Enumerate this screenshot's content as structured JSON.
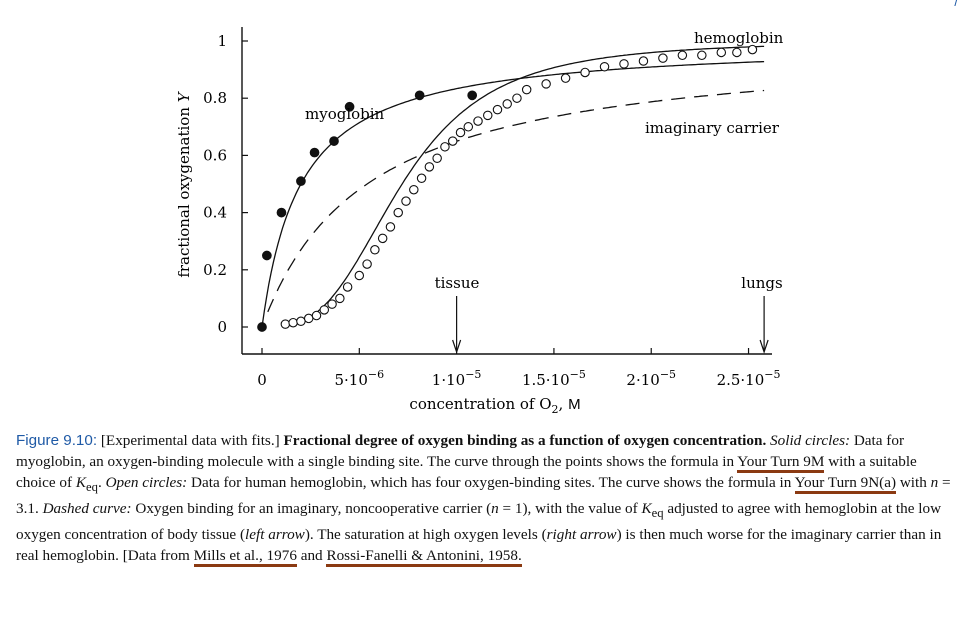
{
  "chart_data": {
    "type": "scatter",
    "xlabel_prefix": "concentration of O",
    "xlabel_sub": "2",
    "xlabel_unit": "M",
    "ylabel": "fractional oxygenation",
    "ylabel_var": "Y",
    "xlim": [
      0,
      2.6e-05
    ],
    "ylim": [
      -0.1,
      1.05
    ],
    "x_ticks": [
      {
        "value": 0,
        "mant": "0",
        "exp": ""
      },
      {
        "value": 5e-06,
        "mant": "5·10",
        "exp": "−6"
      },
      {
        "value": 1e-05,
        "mant": "1·10",
        "exp": "−5"
      },
      {
        "value": 1.5e-05,
        "mant": "1.5·10",
        "exp": "−5"
      },
      {
        "value": 2e-05,
        "mant": "2·10",
        "exp": "−5"
      },
      {
        "value": 2.5e-05,
        "mant": "2.5·10",
        "exp": "−5"
      }
    ],
    "y_ticks": [
      {
        "value": 0,
        "label": "0"
      },
      {
        "value": 0.2,
        "label": "0.2"
      },
      {
        "value": 0.4,
        "label": "0.4"
      },
      {
        "value": 0.6,
        "label": "0.6"
      },
      {
        "value": 0.8,
        "label": "0.8"
      },
      {
        "value": 1,
        "label": "1"
      }
    ],
    "series": [
      {
        "name": "myoglobin",
        "kind": "solid-circles",
        "x": [
          0,
          2.5e-07,
          1e-06,
          2e-06,
          2.7e-06,
          3.7e-06,
          4.5e-06,
          8.1e-06,
          1.08e-05
        ],
        "y": [
          0.0,
          0.25,
          0.4,
          0.51,
          0.61,
          0.65,
          0.77,
          0.81,
          0.81
        ]
      },
      {
        "name": "hemoglobin",
        "kind": "open-circles",
        "x": [
          1.2e-06,
          1.6e-06,
          2e-06,
          2.4e-06,
          2.8e-06,
          3.2e-06,
          3.6e-06,
          4e-06,
          4.4e-06,
          5e-06,
          5.4e-06,
          5.8e-06,
          6.2e-06,
          6.6e-06,
          7e-06,
          7.4e-06,
          7.8e-06,
          8.2e-06,
          8.6e-06,
          9e-06,
          9.4e-06,
          9.8e-06,
          1.02e-05,
          1.06e-05,
          1.11e-05,
          1.16e-05,
          1.21e-05,
          1.26e-05,
          1.31e-05,
          1.36e-05,
          1.46e-05,
          1.56e-05,
          1.66e-05,
          1.76e-05,
          1.86e-05,
          1.96e-05,
          2.06e-05,
          2.16e-05,
          2.26e-05,
          2.36e-05,
          2.44e-05,
          2.52e-05
        ],
        "y": [
          0.01,
          0.015,
          0.02,
          0.03,
          0.04,
          0.06,
          0.08,
          0.1,
          0.14,
          0.18,
          0.22,
          0.27,
          0.31,
          0.35,
          0.4,
          0.44,
          0.48,
          0.52,
          0.56,
          0.59,
          0.63,
          0.65,
          0.68,
          0.7,
          0.72,
          0.74,
          0.76,
          0.78,
          0.8,
          0.83,
          0.85,
          0.87,
          0.89,
          0.91,
          0.92,
          0.93,
          0.94,
          0.95,
          0.95,
          0.96,
          0.96,
          0.97
        ]
      }
    ],
    "fits": [
      {
        "name": "myoglobin-fit",
        "style": "solid",
        "formula": "noncooperative",
        "Keq": 2e-06,
        "n": 1,
        "x_start": 0
      },
      {
        "name": "hemoglobin-fit",
        "style": "solid",
        "formula": "hill",
        "Keq": 7.2e-06,
        "n": 3.1,
        "x_start": 1.2e-06
      },
      {
        "name": "imaginary-carrier-fit",
        "style": "dashed",
        "formula": "noncooperative",
        "Keq": 5.4e-06,
        "n": 1,
        "x_start": 3e-07
      }
    ],
    "annotations": {
      "myoglobin": "myoglobin",
      "hemoglobin": "hemoglobin",
      "imaginary": "imaginary carrier",
      "tissue": "tissue",
      "lungs": "lungs",
      "tissue_x": 1e-05,
      "lungs_x": 2.58e-05
    }
  },
  "caption": {
    "fig_label": "Figure 9.10:",
    "bracket_intro": "[Experimental data with fits.]",
    "bold_title": "Fractional degree of oxygen binding as a function of oxygen concentration.",
    "solid_label": "Solid circles:",
    "solid_text_1": "Data for myoglobin, an oxygen-binding molecule with a single binding site. The curve through the points shows the formula in",
    "link_9m": "Your Turn 9M",
    "solid_text_2": "with a suitable choice of",
    "k_sym": "K",
    "k_sub": "eq",
    "period_1": ".",
    "open_label": "Open circles:",
    "open_text_1": "Data for human hemoglobin, which has four oxygen-binding sites. The curve shows the formula in",
    "link_9n": "Your Turn 9N(a)",
    "open_text_2": "with",
    "n_var": "n",
    "n_val": "= 3.1.",
    "dashed_label": "Dashed curve:",
    "dashed_text_1": "Oxygen binding for an imaginary, noncooperative carrier (",
    "n_val_1": "= 1), with the value of",
    "dashed_text_2": "adjusted to agree with hemoglobin at the low oxygen concentration of body tissue (",
    "left_arrow": "left arrow",
    "dashed_text_3": "). The saturation at high oxygen levels (",
    "right_arrow": "right arrow",
    "dashed_text_4": ") is then much worse for the imaginary carrier than in real hemoglobin.",
    "data_from": "[Data from",
    "link_mills": "Mills et al., 1976",
    "and": "and",
    "link_rossi": "Rossi-Fanelli & Antonini, 1958."
  }
}
